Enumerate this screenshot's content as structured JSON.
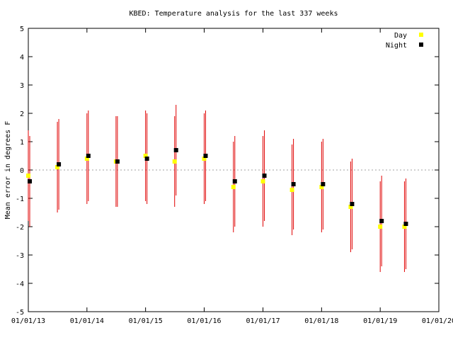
{
  "chart_data": {
    "type": "scatter",
    "title": "KBED: Temperature analysis for the last 337 weeks",
    "ylabel": "Mean error in degrees F",
    "xlabel": "",
    "x_tick_labels": [
      "01/01/13",
      "01/01/14",
      "01/01/15",
      "01/01/16",
      "01/01/17",
      "01/01/18",
      "01/01/19",
      "01/01/20"
    ],
    "y_tick_labels": [
      "5",
      "4",
      "3",
      "2",
      "1",
      "0",
      "-1",
      "-2",
      "-3",
      "-4",
      "-5"
    ],
    "xlim": [
      "2013-01-01",
      "2020-01-01"
    ],
    "ylim": [
      -5,
      5
    ],
    "reference_line_y": 0,
    "legend_position": "top-right",
    "colors": {
      "day": "#ffff00",
      "night": "#000000",
      "error_bars": "#e00000",
      "zero_line": "#a0a0a0"
    },
    "series": [
      {
        "name": "Day",
        "color": "#ffff00",
        "x": [
          "2013-01-01",
          "2013-07-01",
          "2014-01-01",
          "2014-07-01",
          "2015-01-01",
          "2015-07-01",
          "2016-01-01",
          "2016-07-01",
          "2017-01-01",
          "2017-07-01",
          "2018-01-01",
          "2018-07-01",
          "2019-01-01",
          "2019-06-01"
        ],
        "y": [
          -0.2,
          0.1,
          0.4,
          0.3,
          0.5,
          0.3,
          0.4,
          -0.6,
          -0.4,
          -0.7,
          -0.6,
          -1.3,
          -2.0,
          -2.0
        ]
      },
      {
        "name": "Night",
        "color": "#000000",
        "x": [
          "2013-01-01",
          "2013-07-01",
          "2014-01-01",
          "2014-07-01",
          "2015-01-01",
          "2015-07-01",
          "2016-01-01",
          "2016-07-01",
          "2017-01-01",
          "2017-07-01",
          "2018-01-01",
          "2018-07-01",
          "2019-01-01",
          "2019-06-01"
        ],
        "y": [
          -0.4,
          0.2,
          0.5,
          0.3,
          0.4,
          0.7,
          0.5,
          -0.4,
          -0.2,
          -0.5,
          -0.5,
          -1.2,
          -1.8,
          -1.9
        ]
      }
    ]
  }
}
